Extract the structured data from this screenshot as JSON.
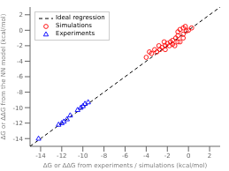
{
  "chart_data": {
    "type": "scatter",
    "title": "",
    "xlabel": "ΔG or ΔΔG from experiments / simulations (kcal/mol)",
    "ylabel": "ΔG or ΔΔG from the NN model (kcal/mol)",
    "xlim": [
      -15,
      3
    ],
    "ylim": [
      -15,
      3
    ],
    "xticks": [
      -14,
      -12,
      -10,
      -8,
      -6,
      -4,
      -2,
      0,
      2
    ],
    "yticks": [
      -14,
      -12,
      -10,
      -8,
      -6,
      -4,
      -2,
      0,
      2
    ],
    "grid": false,
    "legend": "upper left",
    "series": [
      {
        "name": "Ideal regression",
        "type": "line",
        "color": "black",
        "line_style": "dashed",
        "x": [
          -15,
          3
        ],
        "values": [
          -15,
          3
        ]
      },
      {
        "name": "Simulations",
        "type": "scatter",
        "color": "red",
        "marker": "o",
        "x": [
          -0.3,
          -0.5,
          -0.8,
          -1.0,
          -0.2,
          0.0,
          0.3,
          -0.5,
          -1.0,
          -1.2,
          -1.5,
          -1.7,
          -1.8,
          -2.0,
          -2.2,
          -2.2,
          -2.5,
          -2.7,
          -3.0,
          -3.2,
          -3.5,
          -3.7,
          -4.0,
          -1.5,
          -0.8,
          -2.8,
          -1.3,
          -2.3,
          -1.0,
          -0.5
        ],
        "values": [
          0.5,
          0.3,
          0.1,
          -0.2,
          -0.1,
          0.0,
          0.3,
          -0.5,
          -0.7,
          -1.0,
          -1.3,
          -1.5,
          -2.0,
          -1.7,
          -2.0,
          -2.5,
          -2.2,
          -2.5,
          -2.8,
          -2.5,
          -3.0,
          -2.8,
          -3.5,
          -1.8,
          -1.5,
          -2.0,
          -2.0,
          -1.5,
          -1.5,
          -1.0
        ]
      },
      {
        "name": "Experiments",
        "type": "scatter",
        "color": "blue",
        "marker": "^",
        "x": [
          -14.2,
          -12.3,
          -12.0,
          -11.8,
          -11.5,
          -11.2,
          -10.5,
          -10.2,
          -10.0,
          -9.8,
          -9.5
        ],
        "values": [
          -14.0,
          -12.2,
          -12.0,
          -11.8,
          -11.5,
          -11.0,
          -10.3,
          -10.0,
          -9.8,
          -9.5,
          -9.3
        ]
      }
    ]
  }
}
